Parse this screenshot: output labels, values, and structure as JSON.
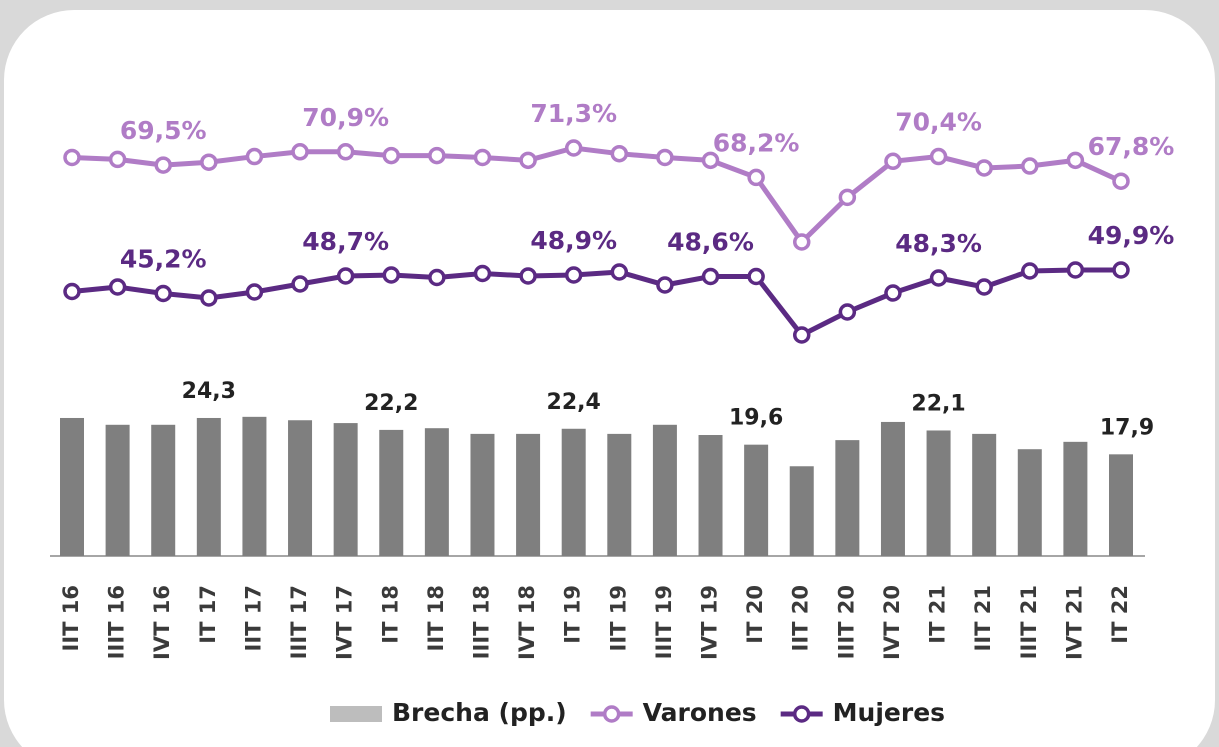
{
  "chart_data": {
    "type": "line",
    "categories": [
      "IIT 16",
      "IIIT 16",
      "IVT 16",
      "IT 17",
      "IIT 17",
      "IIIT 17",
      "IVT 17",
      "IT 18",
      "IIT 18",
      "IIIT 18",
      "IVT 18",
      "IT 19",
      "IIT 19",
      "IIIT 19",
      "IVT 19",
      "IT 20",
      "IIT 20",
      "IIIT 20",
      "IVT 20",
      "IT 21",
      "IIT 21",
      "IIIT 21",
      "IVT 21",
      "IT 22"
    ],
    "series": [
      {
        "name": "Brecha (pp.)",
        "type": "bar",
        "color": "#7f7f7f",
        "legend_color": "#bdbdbd",
        "values": [
          24.3,
          23.1,
          23.1,
          24.3,
          24.5,
          23.9,
          23.4,
          22.2,
          22.5,
          21.5,
          21.5,
          22.4,
          21.5,
          23.1,
          21.3,
          19.6,
          15.8,
          20.4,
          23.6,
          22.1,
          21.5,
          18.8,
          20.1,
          17.9
        ],
        "value_labels": [
          null,
          null,
          null,
          "24,3",
          null,
          null,
          null,
          "22,2",
          null,
          null,
          null,
          "22,4",
          null,
          null,
          null,
          "19,6",
          null,
          null,
          null,
          "22,1",
          null,
          null,
          null,
          "17,9"
        ]
      },
      {
        "name": "Varones",
        "type": "line",
        "color": "#b07cc6",
        "values": [
          70.3,
          70.1,
          69.5,
          69.8,
          70.4,
          70.9,
          70.9,
          70.5,
          70.5,
          70.3,
          70.0,
          71.3,
          70.7,
          70.3,
          70.0,
          68.2,
          61.4,
          66.1,
          69.9,
          70.4,
          69.2,
          69.4,
          70.0,
          67.8
        ],
        "value_labels": [
          null,
          null,
          "69,5%",
          null,
          null,
          null,
          "70,9%",
          null,
          null,
          null,
          null,
          "71,3%",
          null,
          null,
          null,
          "68,2%",
          null,
          null,
          null,
          "70,4%",
          null,
          null,
          null,
          "67,8%"
        ]
      },
      {
        "name": "Mujeres",
        "type": "line",
        "color": "#5b2a83",
        "values": [
          45.6,
          46.5,
          45.2,
          44.3,
          45.5,
          47.1,
          48.7,
          48.9,
          48.4,
          49.2,
          48.7,
          48.9,
          49.5,
          46.9,
          48.6,
          48.6,
          36.9,
          41.5,
          45.3,
          48.3,
          46.5,
          49.7,
          49.9,
          49.9
        ],
        "value_labels": [
          null,
          null,
          "45,2%",
          null,
          null,
          null,
          "48,7%",
          null,
          null,
          null,
          null,
          "48,9%",
          null,
          null,
          "48,6%",
          null,
          null,
          null,
          null,
          "48,3%",
          null,
          null,
          null,
          "49,9%"
        ]
      }
    ]
  }
}
